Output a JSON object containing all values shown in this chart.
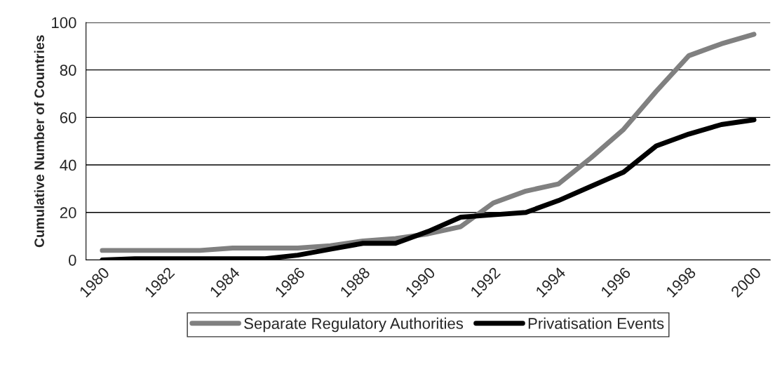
{
  "chart_data": {
    "type": "line",
    "ylabel": "Cumulative Number of Countries",
    "categories": [
      "1980",
      null,
      "1982",
      null,
      "1984",
      null,
      "1986",
      null,
      "1988",
      null,
      "1990",
      null,
      "1992",
      null,
      "1994",
      null,
      "1996",
      null,
      "1998",
      null,
      "2000"
    ],
    "series": [
      {
        "name": "Separate Regulatory Authorities",
        "color": "#808080",
        "values": [
          4,
          4,
          4,
          4,
          5,
          5,
          5,
          6,
          8,
          9,
          11,
          14,
          24,
          29,
          32,
          43,
          55,
          71,
          86,
          91,
          95
        ]
      },
      {
        "name": "Privatisation Events",
        "color": "#000000",
        "values": [
          0,
          0.5,
          0.5,
          0.5,
          0.5,
          0.5,
          2,
          4.5,
          7,
          7,
          12,
          18,
          19,
          20,
          25,
          31,
          37,
          48,
          53,
          57,
          59
        ]
      }
    ],
    "ylim": [
      0,
      100
    ],
    "yticks": [
      0,
      20,
      40,
      60,
      80,
      100
    ],
    "grid": "y",
    "legend": "bottom",
    "marker": "none",
    "line_style": "solid"
  }
}
